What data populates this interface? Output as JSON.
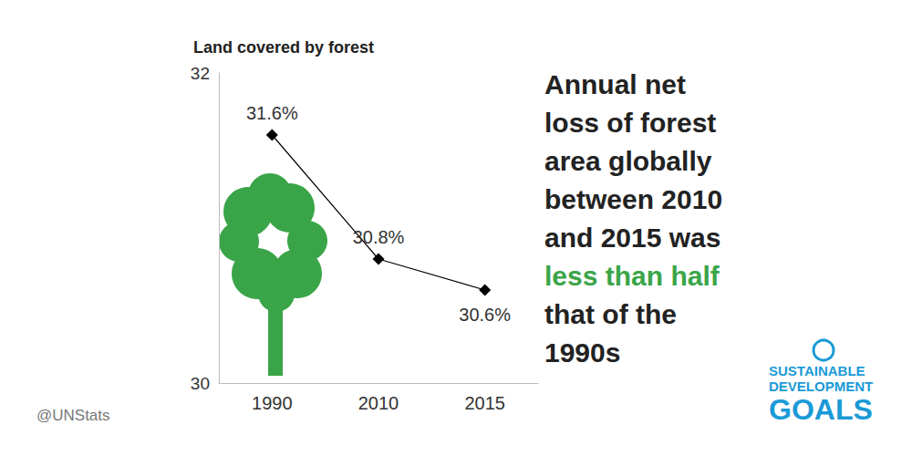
{
  "chart_data": {
    "type": "line",
    "title": "Land covered by forest",
    "categories": [
      "1990",
      "2010",
      "2015"
    ],
    "values": [
      31.6,
      30.8,
      30.6
    ],
    "value_labels": [
      "31.6%",
      "30.8%",
      "30.6%"
    ],
    "data_labels": true,
    "color": "#000000",
    "marker": "diamond",
    "ylim": [
      30,
      32
    ],
    "yticks": [
      30,
      32
    ],
    "grid": false,
    "annotations": [
      {
        "text": "Annual net loss of forest area globally between 2010 and 2015 was",
        "color": "#222222"
      },
      {
        "text": "less than half",
        "color": "#3aa548"
      },
      {
        "text": "that of the 1990s",
        "color": "#222222"
      }
    ],
    "footer": "@UNStats",
    "logo": [
      "SUSTAINABLE",
      "DEVELOPMENT",
      "GOALS"
    ]
  }
}
